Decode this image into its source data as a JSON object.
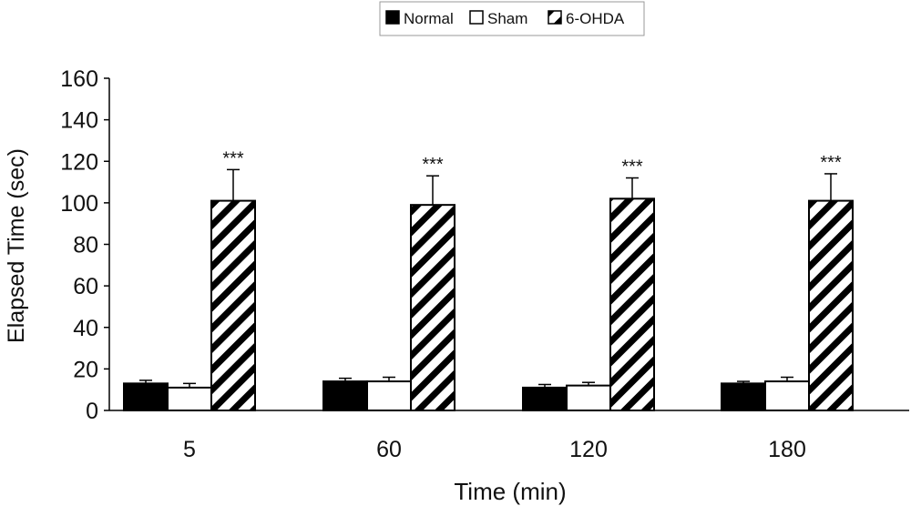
{
  "chart_data": {
    "type": "bar",
    "title": "",
    "xlabel": "Time (min)",
    "ylabel": "Elapsed Time (sec)",
    "categories": [
      "5",
      "60",
      "120",
      "180"
    ],
    "ylim": [
      0,
      160
    ],
    "yticks": [
      0,
      20,
      40,
      60,
      80,
      100,
      120,
      140,
      160
    ],
    "grid": false,
    "legend_position": "top-center",
    "series": [
      {
        "name": "Normal",
        "values": [
          13,
          14,
          11,
          13
        ],
        "errors": [
          1.5,
          1.5,
          1.5,
          1
        ],
        "fill": "#000000",
        "pattern": "solid"
      },
      {
        "name": "Sham",
        "values": [
          11,
          14,
          12,
          14
        ],
        "errors": [
          2,
          2,
          1.5,
          2
        ],
        "fill": "#ffffff",
        "pattern": "solid"
      },
      {
        "name": "6-OHDA",
        "values": [
          101,
          99,
          102,
          101
        ],
        "errors": [
          15,
          14,
          10,
          13
        ],
        "fill": "#ffffff",
        "pattern": "diagonal-stripes"
      }
    ],
    "annotations": [
      {
        "series": "6-OHDA",
        "category": "5",
        "text": "***"
      },
      {
        "series": "6-OHDA",
        "category": "60",
        "text": "***"
      },
      {
        "series": "6-OHDA",
        "category": "120",
        "text": "***"
      },
      {
        "series": "6-OHDA",
        "category": "180",
        "text": "***"
      }
    ]
  }
}
